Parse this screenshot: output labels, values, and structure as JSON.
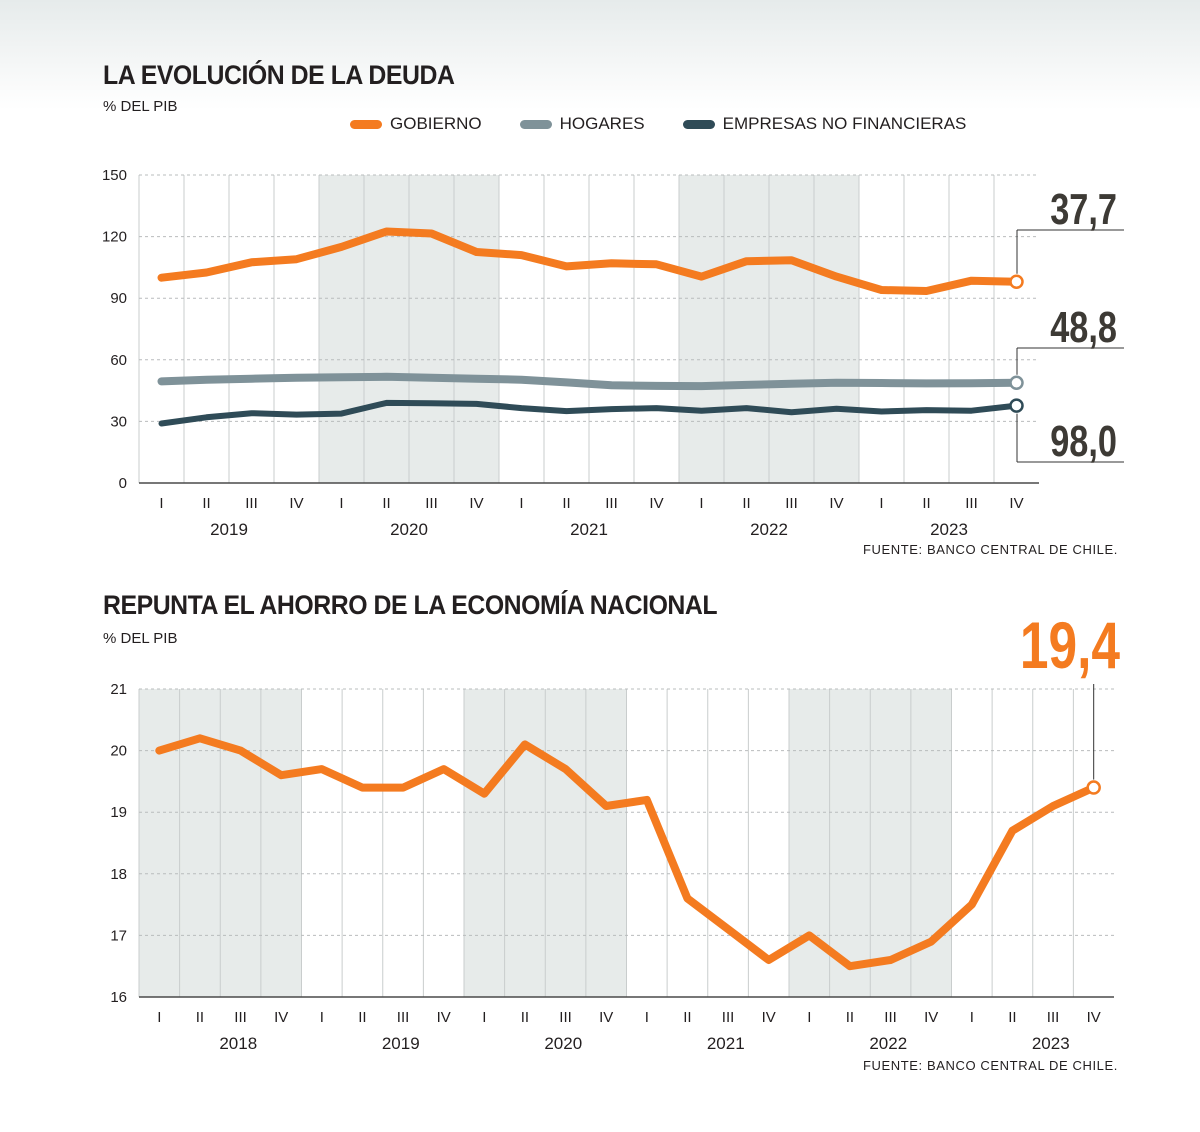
{
  "colors": {
    "gobierno": "#f47b20",
    "hogares": "#7f9299",
    "empresas": "#2f4b57",
    "shade": "#e7ebea",
    "grid": "#b9bcbd",
    "text": "#231f20",
    "callout_dark": "#3d3a35",
    "callout_orange": "#f47b20"
  },
  "chart1": {
    "title": "LA EVOLUCIÓN DE LA DEUDA",
    "unit": "% DEL PIB",
    "source": "FUENTE: BANCO CENTRAL DE CHILE.",
    "legend": [
      "GOBIERNO",
      "HOGARES",
      "EMPRESAS NO FINANCIERAS"
    ],
    "callouts": [
      "37,7",
      "48,8",
      "98,0"
    ]
  },
  "chart2": {
    "title": "REPUNTA EL AHORRO DE LA ECONOMÍA NACIONAL",
    "unit": "% DEL PIB",
    "source": "FUENTE: BANCO CENTRAL DE CHILE.",
    "callout": "19,4"
  },
  "chart_data": [
    {
      "type": "line",
      "title": "LA EVOLUCIÓN DE LA DEUDA",
      "ylabel": "% DEL PIB",
      "ylim": [
        0,
        150
      ],
      "yticks": [
        0,
        30,
        60,
        90,
        120,
        150
      ],
      "x": [
        "I",
        "II",
        "III",
        "IV",
        "I",
        "II",
        "III",
        "IV",
        "I",
        "II",
        "III",
        "IV",
        "I",
        "II",
        "III",
        "IV",
        "I",
        "II",
        "III",
        "IV"
      ],
      "years": [
        "2019",
        "2020",
        "2021",
        "2022",
        "2023"
      ],
      "shaded_years": [
        "2020",
        "2022"
      ],
      "grid": true,
      "legend_position": "top",
      "series": [
        {
          "name": "GOBIERNO",
          "values": [
            100,
            102.5,
            107.5,
            109,
            115,
            122.5,
            121.5,
            112.5,
            111,
            105.5,
            107,
            106.5,
            100.5,
            108,
            108.5,
            100.5,
            94,
            93.5,
            98.5,
            98
          ]
        },
        {
          "name": "HOGARES",
          "values": [
            49.5,
            50.3,
            50.8,
            51.3,
            51.5,
            51.7,
            51.3,
            50.8,
            50.3,
            49,
            47.6,
            47.3,
            47.2,
            47.8,
            48.3,
            48.8,
            48.7,
            48.5,
            48.6,
            48.8
          ]
        },
        {
          "name": "EMPRESAS NO FINANCIERAS",
          "values": [
            29,
            32,
            34,
            33.3,
            33.8,
            39,
            38.8,
            38.5,
            36.5,
            35,
            36,
            36.5,
            35.2,
            36.5,
            34.5,
            36.2,
            34.8,
            35.5,
            35.2,
            37.7
          ]
        }
      ]
    },
    {
      "type": "line",
      "title": "REPUNTA EL AHORRO DE LA ECONOMÍA NACIONAL",
      "ylabel": "% DEL PIB",
      "ylim": [
        16,
        21
      ],
      "yticks": [
        16,
        17,
        18,
        19,
        20,
        21
      ],
      "x": [
        "I",
        "II",
        "III",
        "IV",
        "I",
        "II",
        "III",
        "IV",
        "I",
        "II",
        "III",
        "IV",
        "I",
        "II",
        "III",
        "IV",
        "I",
        "II",
        "III",
        "IV",
        "I",
        "II",
        "III",
        "IV"
      ],
      "years": [
        "2018",
        "2019",
        "2020",
        "2021",
        "2022",
        "2023"
      ],
      "shaded_years": [
        "2018",
        "2020",
        "2022"
      ],
      "grid": true,
      "series": [
        {
          "name": "",
          "values": [
            20,
            20.2,
            20,
            19.6,
            19.7,
            19.4,
            19.4,
            19.7,
            19.3,
            20.1,
            19.7,
            19.1,
            19.2,
            17.6,
            17.1,
            16.6,
            17,
            16.5,
            16.6,
            16.9,
            17.5,
            18.7,
            19.1,
            19.4
          ]
        }
      ]
    }
  ]
}
